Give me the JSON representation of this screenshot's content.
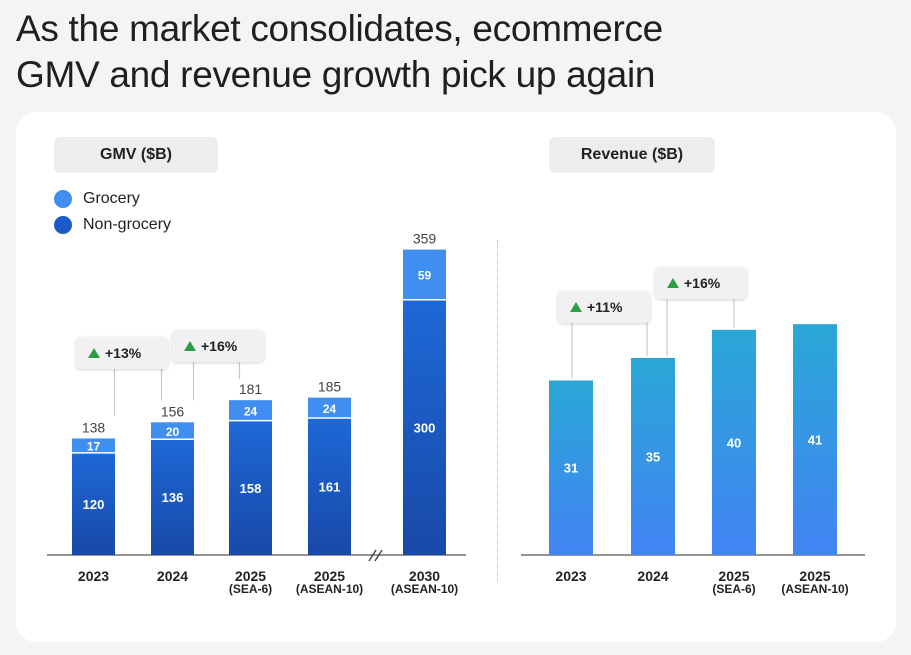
{
  "title": {
    "line1": "As the market consolidates, ecommerce",
    "line2": "GMV and revenue growth pick up again"
  },
  "colors": {
    "grocery": "#3f8ef0",
    "non_grocery": "#1a5bc7",
    "revenue_top": "#2aa7d6",
    "revenue_bottom": "#4283f3",
    "growth_up": "#2e9e44",
    "background": "#f3f5f4",
    "card": "#ffffff"
  },
  "chart_data": [
    {
      "type": "bar",
      "stacked": true,
      "title": "GMV ($B)",
      "categories": [
        {
          "label": "2023",
          "sub": ""
        },
        {
          "label": "2024",
          "sub": ""
        },
        {
          "label": "2025",
          "sub": "(SEA-6)"
        },
        {
          "label": "2025",
          "sub": "(ASEAN-10)"
        },
        {
          "label": "2030",
          "sub": "(ASEAN-10)"
        }
      ],
      "series": [
        {
          "name": "Non-grocery",
          "values": [
            120,
            136,
            158,
            161,
            300
          ]
        },
        {
          "name": "Grocery",
          "values": [
            17,
            20,
            24,
            24,
            59
          ]
        }
      ],
      "totals": [
        138,
        156,
        181,
        185,
        359
      ],
      "growth_callouts": [
        {
          "from": 0,
          "to": 1,
          "label": "+13%"
        },
        {
          "from": 1,
          "to": 2,
          "label": "+16%"
        }
      ],
      "axis_break_before_index": 4,
      "legend": [
        "Grocery",
        "Non-grocery"
      ],
      "legend_position": "top-left"
    },
    {
      "type": "bar",
      "title": "Revenue ($B)",
      "categories": [
        {
          "label": "2023",
          "sub": ""
        },
        {
          "label": "2024",
          "sub": ""
        },
        {
          "label": "2025",
          "sub": "(SEA-6)"
        },
        {
          "label": "2025",
          "sub": "(ASEAN-10)"
        }
      ],
      "values": [
        31,
        35,
        40,
        41
      ],
      "growth_callouts": [
        {
          "from": 0,
          "to": 1,
          "label": "+11%"
        },
        {
          "from": 1,
          "to": 2,
          "label": "+16%"
        }
      ]
    }
  ]
}
